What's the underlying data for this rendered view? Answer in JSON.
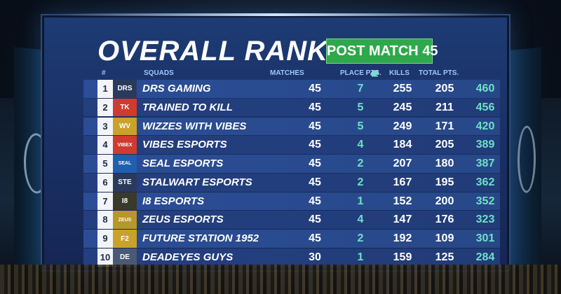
{
  "title": "OVERALL RANKING",
  "subtitle": "POST MATCH 45",
  "headers": {
    "rank": "#",
    "squads": "SQUADS",
    "matches": "MATCHES",
    "place_pts": "PLACE PTS.",
    "kills": "KILLS",
    "total_pts": "TOTAL PTS."
  },
  "rows": [
    {
      "rank": "1",
      "logo": "DRS",
      "logo_color": "#2a3a5c",
      "team": "DRS GAMING",
      "matches": "45",
      "wins": "7",
      "place": "255",
      "kills": "205",
      "total": "460"
    },
    {
      "rank": "2",
      "logo": "TK",
      "logo_color": "#d13a2f",
      "team": "TRAINED TO KILL",
      "matches": "45",
      "wins": "5",
      "place": "245",
      "kills": "211",
      "total": "456"
    },
    {
      "rank": "3",
      "logo": "WV",
      "logo_color": "#c9a227",
      "team": "WIZZES WITH VIBES",
      "matches": "45",
      "wins": "5",
      "place": "249",
      "kills": "171",
      "total": "420"
    },
    {
      "rank": "4",
      "logo": "VIBEX",
      "logo_color": "#d13a2f",
      "team": "VIBES ESPORTS",
      "matches": "45",
      "wins": "4",
      "place": "184",
      "kills": "205",
      "total": "389"
    },
    {
      "rank": "5",
      "logo": "SEAL",
      "logo_color": "#1e5fb0",
      "team": "SEAL ESPORTS",
      "matches": "45",
      "wins": "2",
      "place": "207",
      "kills": "180",
      "total": "387"
    },
    {
      "rank": "6",
      "logo": "STE",
      "logo_color": "#2a3a5c",
      "team": "STALWART ESPORTS",
      "matches": "45",
      "wins": "2",
      "place": "167",
      "kills": "195",
      "total": "362"
    },
    {
      "rank": "7",
      "logo": "I8",
      "logo_color": "#3a3a2a",
      "team": "I8 ESPORTS",
      "matches": "45",
      "wins": "1",
      "place": "152",
      "kills": "200",
      "total": "352"
    },
    {
      "rank": "8",
      "logo": "ZEUS",
      "logo_color": "#b8962a",
      "team": "ZEUS ESPORTS",
      "matches": "45",
      "wins": "4",
      "place": "147",
      "kills": "176",
      "total": "323"
    },
    {
      "rank": "9",
      "logo": "F2",
      "logo_color": "#c9a227",
      "team": "FUTURE STATION 1952",
      "matches": "45",
      "wins": "2",
      "place": "192",
      "kills": "109",
      "total": "301"
    },
    {
      "rank": "10",
      "logo": "DE",
      "logo_color": "#4a5a74",
      "team": "DEADEYES GUYS",
      "matches": "30",
      "wins": "1",
      "place": "159",
      "kills": "125",
      "total": "284"
    }
  ]
}
